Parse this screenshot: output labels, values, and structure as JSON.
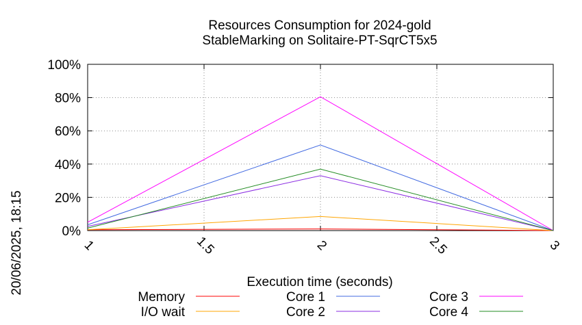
{
  "chart_data": {
    "type": "line",
    "title": "Resources Consumption for 2024-gold",
    "subtitle": "StableMarking on Solitaire-PT-SqrCT5x5",
    "xlabel": "Execution time (seconds)",
    "ylabel": "",
    "side_label": "20/06/2025, 18:15",
    "xlim": [
      1,
      3
    ],
    "ylim": [
      0,
      100
    ],
    "x_ticks": [
      "1",
      "1.5",
      "2",
      "2.5",
      "3"
    ],
    "y_ticks": [
      "0%",
      "20%",
      "40%",
      "60%",
      "80%",
      "100%"
    ],
    "grid": true,
    "legend_position": "bottom",
    "x": [
      1,
      2,
      3
    ],
    "series": [
      {
        "name": "Memory",
        "color": "#ff0000",
        "values": [
          0.5,
          1,
          0
        ]
      },
      {
        "name": "I/O wait",
        "color": "#ffa500",
        "values": [
          0.5,
          8.5,
          0
        ]
      },
      {
        "name": "Core 1",
        "color": "#4169e1",
        "values": [
          3.5,
          51.5,
          0
        ]
      },
      {
        "name": "Core 2",
        "color": "#8a2be2",
        "values": [
          2.5,
          33,
          0
        ]
      },
      {
        "name": "Core 3",
        "color": "#ff00ff",
        "values": [
          5,
          80.5,
          0
        ]
      },
      {
        "name": "Core 4",
        "color": "#228b22",
        "values": [
          1.5,
          37,
          0
        ]
      }
    ]
  }
}
